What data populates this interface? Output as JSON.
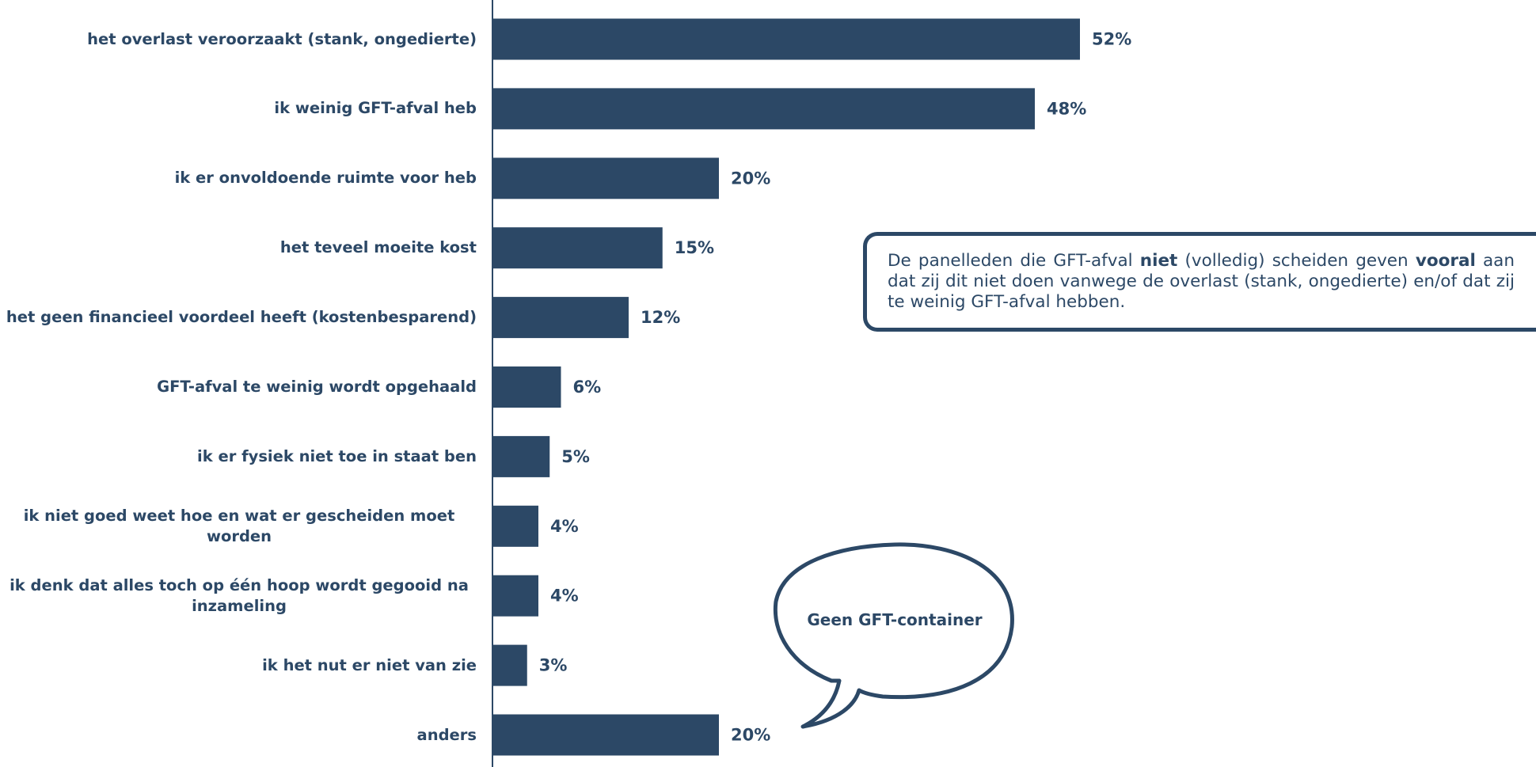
{
  "chart_data": {
    "type": "bar",
    "orientation": "horizontal",
    "categories": [
      "het overlast veroorzaakt (stank, ongedierte)",
      "ik weinig GFT-afval heb",
      "ik er onvoldoende ruimte voor heb",
      "het teveel moeite kost",
      "het geen financieel voordeel heeft (kostenbesparend)",
      "GFT-afval te weinig wordt opgehaald",
      "ik er fysiek niet toe in staat ben",
      "ik niet goed weet hoe en wat er gescheiden moet worden",
      "ik denk dat alles toch op één hoop wordt gegooid na inzameling",
      "ik het nut er niet van zie",
      "anders"
    ],
    "values": [
      52,
      48,
      20,
      15,
      12,
      6,
      5,
      4,
      4,
      3,
      20
    ],
    "value_labels": [
      "52%",
      "48%",
      "20%",
      "15%",
      "12%",
      "6%",
      "5%",
      "4%",
      "4%",
      "3%",
      "20%"
    ],
    "color": "#2c4866",
    "annotation": [
      "De panelleden die GFT-afval ",
      "niet",
      " (volledig) scheiden geven ",
      "vooral",
      " aan dat zij dit niet doen vanwege de overlast (stank, ongedierte) en/of dat zij te weinig GFT-afval hebben."
    ],
    "bubble": "Geen GFT-container"
  }
}
